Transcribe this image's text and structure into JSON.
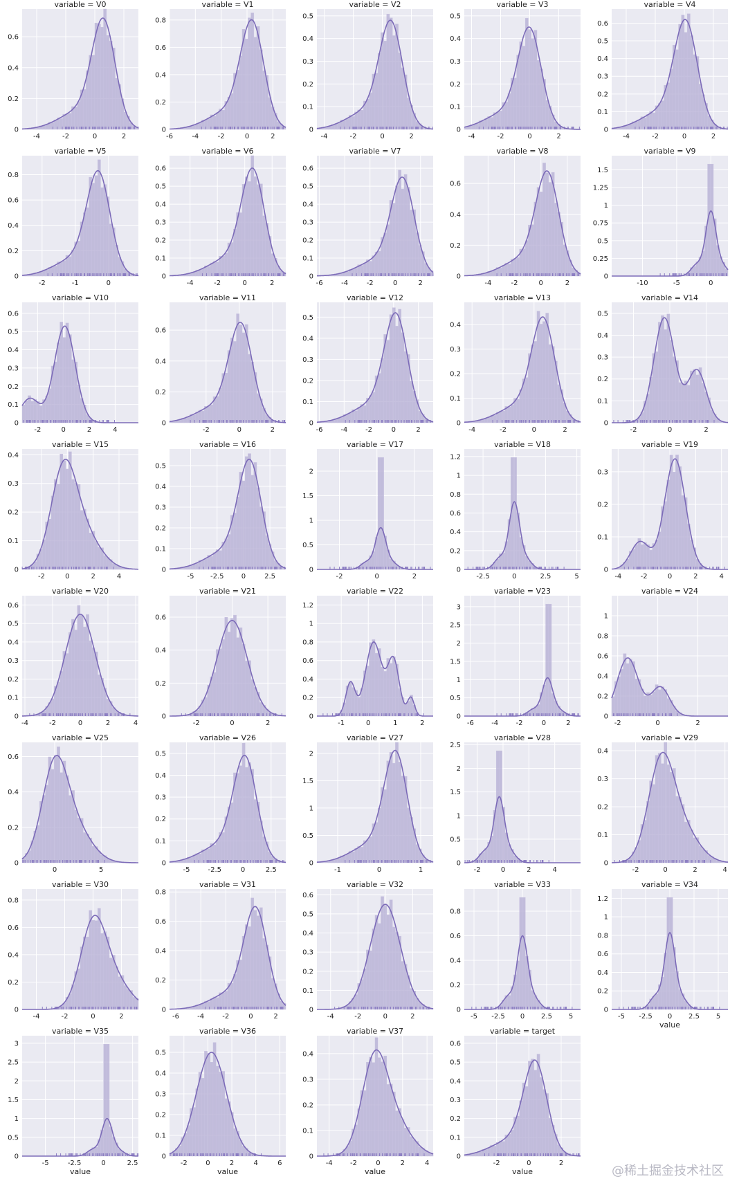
{
  "facet_prefix": "variable = ",
  "x_axis_label": "value",
  "watermark": "@稀土掘金技术社区",
  "chart_data": [
    {
      "panel": "V0",
      "type": "histogram+kde",
      "title": "variable = V0",
      "xlim": [
        -5,
        3
      ],
      "ylim": [
        0,
        0.78
      ],
      "xticks": [
        -4,
        -2,
        0,
        2
      ],
      "yticks": [
        0,
        0.2,
        0.4,
        0.6
      ],
      "mode": [
        0.6,
        0.72
      ],
      "skew": "left"
    },
    {
      "panel": "V1",
      "type": "histogram+kde",
      "title": "variable = V1",
      "xlim": [
        -6,
        3
      ],
      "ylim": [
        0,
        0.88
      ],
      "xticks": [
        -6,
        -4,
        -2,
        0,
        2
      ],
      "yticks": [
        0,
        0.2,
        0.4,
        0.6,
        0.8
      ],
      "mode": [
        0.4,
        0.8
      ],
      "skew": "left"
    },
    {
      "panel": "V2",
      "type": "histogram+kde",
      "title": "variable = V2",
      "xlim": [
        -4.5,
        3.5
      ],
      "ylim": [
        0,
        0.53
      ],
      "xticks": [
        -4,
        -2,
        0,
        2
      ],
      "yticks": [
        0,
        0.1,
        0.2,
        0.3,
        0.4,
        0.5
      ],
      "mode": [
        0.6,
        0.48
      ],
      "skew": "left"
    },
    {
      "panel": "V3",
      "type": "histogram+kde",
      "title": "variable = V3",
      "xlim": [
        -4.5,
        3.5
      ],
      "ylim": [
        0,
        0.53
      ],
      "xticks": [
        -4,
        -2,
        0,
        2
      ],
      "yticks": [
        0,
        0.1,
        0.2,
        0.3,
        0.4,
        0.5
      ],
      "mode": [
        0,
        0.45
      ],
      "skew": "left"
    },
    {
      "panel": "V4",
      "type": "histogram+kde",
      "title": "variable = V4",
      "xlim": [
        -5,
        3
      ],
      "ylim": [
        0,
        0.68
      ],
      "xticks": [
        -4,
        -2,
        0,
        2
      ],
      "yticks": [
        0,
        0.1,
        0.2,
        0.3,
        0.4,
        0.5,
        0.6
      ],
      "mode": [
        0.1,
        0.62
      ],
      "skew": "left"
    },
    {
      "panel": "V5",
      "type": "histogram+kde",
      "title": "variable = V5",
      "xlim": [
        -2.6,
        0.9
      ],
      "ylim": [
        0,
        0.95
      ],
      "xticks": [
        -2,
        -1,
        0
      ],
      "yticks": [
        0,
        0.2,
        0.4,
        0.6,
        0.8
      ],
      "mode": [
        -0.3,
        0.83
      ],
      "skew": "left"
    },
    {
      "panel": "V6",
      "type": "histogram+kde",
      "title": "variable = V6",
      "xlim": [
        -5.5,
        3
      ],
      "ylim": [
        0,
        0.67
      ],
      "xticks": [
        -4,
        -2,
        0,
        2
      ],
      "yticks": [
        0,
        0.1,
        0.2,
        0.3,
        0.4,
        0.5,
        0.6
      ],
      "mode": [
        0.6,
        0.6
      ],
      "skew": "left"
    },
    {
      "panel": "V7",
      "type": "histogram+kde",
      "title": "variable = V7",
      "xlim": [
        -6.2,
        3
      ],
      "ylim": [
        0,
        0.67
      ],
      "xticks": [
        -6,
        -4,
        -2,
        0,
        2
      ],
      "yticks": [
        0,
        0.1,
        0.2,
        0.3,
        0.4,
        0.5,
        0.6
      ],
      "mode": [
        0.6,
        0.55
      ],
      "skew": "left"
    },
    {
      "panel": "V8",
      "type": "histogram+kde",
      "title": "variable = V8",
      "xlim": [
        -5.8,
        3
      ],
      "ylim": [
        0,
        0.78
      ],
      "xticks": [
        -4,
        -2,
        0,
        2
      ],
      "yticks": [
        0,
        0.2,
        0.4,
        0.6
      ],
      "mode": [
        0.5,
        0.68
      ],
      "skew": "left"
    },
    {
      "panel": "V9",
      "type": "histogram+kde",
      "title": "variable = V9",
      "xlim": [
        -14.5,
        2.5
      ],
      "ylim": [
        0,
        1.7
      ],
      "xticks": [
        -10,
        -5,
        0
      ],
      "yticks": [
        0,
        0.25,
        0.5,
        0.75,
        1,
        1.25,
        1.5
      ],
      "mode": [
        0,
        0.92
      ],
      "skew": "spiky"
    },
    {
      "panel": "V10",
      "type": "histogram+kde",
      "title": "variable = V10",
      "xlim": [
        -3.2,
        5.8
      ],
      "ylim": [
        0,
        0.66
      ],
      "xticks": [
        -2,
        0,
        2,
        4
      ],
      "yticks": [
        0,
        0.1,
        0.2,
        0.3,
        0.4,
        0.5,
        0.6
      ],
      "mode": [
        0.1,
        0.53
      ],
      "skew": "bimodal-left"
    },
    {
      "panel": "V11",
      "type": "histogram+kde",
      "title": "variable = V11",
      "xlim": [
        -4.2,
        2.8
      ],
      "ylim": [
        0,
        0.78
      ],
      "xticks": [
        -2,
        0,
        2
      ],
      "yticks": [
        0,
        0.2,
        0.4,
        0.6
      ],
      "mode": [
        0.1,
        0.65
      ],
      "skew": "left"
    },
    {
      "panel": "V12",
      "type": "histogram+kde",
      "title": "variable = V12",
      "xlim": [
        -6.2,
        3.2
      ],
      "ylim": [
        0,
        0.57
      ],
      "xticks": [
        -6,
        -4,
        -2,
        0,
        2
      ],
      "yticks": [
        0,
        0.1,
        0.2,
        0.3,
        0.4,
        0.5
      ],
      "mode": [
        0.2,
        0.52
      ],
      "skew": "left"
    },
    {
      "panel": "V13",
      "type": "histogram+kde",
      "title": "variable = V13",
      "xlim": [
        -4.5,
        3
      ],
      "ylim": [
        0,
        0.49
      ],
      "xticks": [
        -4,
        -2,
        0,
        2
      ],
      "yticks": [
        0,
        0.1,
        0.2,
        0.3,
        0.4
      ],
      "mode": [
        0.6,
        0.43
      ],
      "skew": "left"
    },
    {
      "panel": "V14",
      "type": "histogram+kde",
      "title": "variable = V14",
      "xlim": [
        -3.2,
        3.2
      ],
      "ylim": [
        0,
        0.55
      ],
      "xticks": [
        -2,
        0,
        2
      ],
      "yticks": [
        0,
        0.1,
        0.2,
        0.3,
        0.4,
        0.5
      ],
      "mode": [
        -0.3,
        0.48
      ],
      "skew": "bimodal-right"
    },
    {
      "panel": "V15",
      "type": "histogram+kde",
      "title": "variable = V15",
      "xlim": [
        -3.5,
        5.5
      ],
      "ylim": [
        0,
        0.42
      ],
      "xticks": [
        -2,
        0,
        2,
        4
      ],
      "yticks": [
        0,
        0.1,
        0.2,
        0.3,
        0.4
      ],
      "mode": [
        -0.3,
        0.38
      ],
      "skew": "right"
    },
    {
      "panel": "V16",
      "type": "histogram+kde",
      "title": "variable = V16",
      "xlim": [
        -7,
        4
      ],
      "ylim": [
        0,
        0.58
      ],
      "xticks": [
        -5,
        -2.5,
        0,
        2.5
      ],
      "yticks": [
        0,
        0.1,
        0.2,
        0.3,
        0.4,
        0.5
      ],
      "mode": [
        0.6,
        0.53
      ],
      "skew": "left"
    },
    {
      "panel": "V17",
      "type": "histogram+kde",
      "title": "variable = V17",
      "xlim": [
        -3.2,
        3
      ],
      "ylim": [
        0,
        2.45
      ],
      "xticks": [
        -2,
        0,
        2
      ],
      "yticks": [
        0,
        0.5,
        1,
        1.5,
        2
      ],
      "mode": [
        0.2,
        0.85
      ],
      "skew": "spiky"
    },
    {
      "panel": "V18",
      "type": "histogram+kde",
      "title": "variable = V18",
      "xlim": [
        -4,
        5.3
      ],
      "ylim": [
        0,
        1.28
      ],
      "xticks": [
        -2.5,
        0,
        2.5,
        5
      ],
      "yticks": [
        0,
        0.2,
        0.4,
        0.6,
        0.8,
        1,
        1.2
      ],
      "mode": [
        0,
        0.72
      ],
      "skew": "spiky"
    },
    {
      "panel": "V19",
      "type": "histogram+kde",
      "title": "variable = V19",
      "xlim": [
        -4.5,
        4.5
      ],
      "ylim": [
        0,
        0.37
      ],
      "xticks": [
        -4,
        -2,
        0,
        2,
        4
      ],
      "yticks": [
        0,
        0.1,
        0.2,
        0.3
      ],
      "mode": [
        0.4,
        0.34
      ],
      "skew": "bimodal-left"
    },
    {
      "panel": "V20",
      "type": "histogram+kde",
      "title": "variable = V20",
      "xlim": [
        -4.2,
        4.2
      ],
      "ylim": [
        0,
        0.65
      ],
      "xticks": [
        -4,
        -2,
        0,
        2,
        4
      ],
      "yticks": [
        0,
        0.1,
        0.2,
        0.3,
        0.4,
        0.5,
        0.6
      ],
      "mode": [
        0,
        0.55
      ],
      "skew": "symmetric"
    },
    {
      "panel": "V21",
      "type": "histogram+kde",
      "title": "variable = V21",
      "xlim": [
        -3.5,
        3
      ],
      "ylim": [
        0,
        0.73
      ],
      "xticks": [
        -2,
        0,
        2
      ],
      "yticks": [
        0,
        0.2,
        0.4,
        0.6
      ],
      "mode": [
        0,
        0.58
      ],
      "skew": "symmetric"
    },
    {
      "panel": "V22",
      "type": "histogram+kde",
      "title": "variable = V22",
      "xlim": [
        -1.9,
        2.4
      ],
      "ylim": [
        0,
        1.3
      ],
      "xticks": [
        -1,
        0,
        1,
        2
      ],
      "yticks": [
        0,
        0.2,
        0.4,
        0.6,
        0.8,
        1,
        1.2
      ],
      "mode": [
        0.2,
        0.8
      ],
      "skew": "multimodal"
    },
    {
      "panel": "V23",
      "type": "histogram+kde",
      "title": "variable = V23",
      "xlim": [
        -6.5,
        3
      ],
      "ylim": [
        0,
        3.3
      ],
      "xticks": [
        -6,
        -4,
        -2,
        0,
        2
      ],
      "yticks": [
        0,
        0.5,
        1,
        1.5,
        2,
        2.5,
        3
      ],
      "mode": [
        0.3,
        1.05
      ],
      "skew": "spiky"
    },
    {
      "panel": "V24",
      "type": "histogram+kde",
      "title": "variable = V24",
      "xlim": [
        -2.3,
        3.5
      ],
      "ylim": [
        0,
        1.2
      ],
      "xticks": [
        -2,
        0,
        2
      ],
      "yticks": [
        0,
        0.2,
        0.4,
        0.6,
        0.8,
        1
      ],
      "mode": [
        -1.5,
        0.58
      ],
      "skew": "bimodal-right"
    },
    {
      "panel": "V25",
      "type": "histogram+kde",
      "title": "variable = V25",
      "xlim": [
        -3.5,
        9
      ],
      "ylim": [
        0,
        0.68
      ],
      "xticks": [
        0,
        5
      ],
      "yticks": [
        0,
        0.2,
        0.4,
        0.6
      ],
      "mode": [
        0,
        0.6
      ],
      "skew": "right"
    },
    {
      "panel": "V26",
      "type": "histogram+kde",
      "title": "variable = V26",
      "xlim": [
        -6.5,
        3.8
      ],
      "ylim": [
        0,
        0.55
      ],
      "xticks": [
        -5,
        -2.5,
        0,
        2.5
      ],
      "yticks": [
        0,
        0.1,
        0.2,
        0.3,
        0.4,
        0.5
      ],
      "mode": [
        0.2,
        0.49
      ],
      "skew": "left"
    },
    {
      "panel": "V27",
      "type": "histogram+kde",
      "title": "variable = V27",
      "xlim": [
        -1.5,
        1.3
      ],
      "ylim": [
        0,
        2.2
      ],
      "xticks": [
        -1,
        0,
        1
      ],
      "yticks": [
        0,
        0.5,
        1,
        1.5,
        2
      ],
      "mode": [
        0.4,
        2.05
      ],
      "skew": "left"
    },
    {
      "panel": "V28",
      "type": "histogram+kde",
      "title": "variable = V28",
      "xlim": [
        -3,
        6
      ],
      "ylim": [
        0,
        2.55
      ],
      "xticks": [
        -2,
        0,
        2,
        4
      ],
      "yticks": [
        0,
        0.5,
        1,
        1.5,
        2,
        2.5
      ],
      "mode": [
        -0.3,
        1.4
      ],
      "skew": "spiky"
    },
    {
      "panel": "V29",
      "type": "histogram+kde",
      "title": "variable = V29",
      "xlim": [
        -3.6,
        4.2
      ],
      "ylim": [
        0,
        0.43
      ],
      "xticks": [
        -2,
        0,
        2,
        4
      ],
      "yticks": [
        0,
        0.1,
        0.2,
        0.3,
        0.4
      ],
      "mode": [
        -0.3,
        0.39
      ],
      "skew": "right"
    },
    {
      "panel": "V30",
      "type": "histogram+kde",
      "title": "variable = V30",
      "xlim": [
        -5,
        3.2
      ],
      "ylim": [
        0,
        0.88
      ],
      "xticks": [
        -4,
        -2,
        0,
        2
      ],
      "yticks": [
        0,
        0.2,
        0.4,
        0.6,
        0.8
      ],
      "mode": [
        0,
        0.68
      ],
      "skew": "right"
    },
    {
      "panel": "V31",
      "type": "histogram+kde",
      "title": "variable = V31",
      "xlim": [
        -6.5,
        2.8
      ],
      "ylim": [
        0,
        0.82
      ],
      "xticks": [
        -6,
        -4,
        -2,
        0,
        2
      ],
      "yticks": [
        0,
        0.2,
        0.4,
        0.6,
        0.8
      ],
      "mode": [
        0.4,
        0.7
      ],
      "skew": "left"
    },
    {
      "panel": "V32",
      "type": "histogram+kde",
      "title": "variable = V32",
      "xlim": [
        -5,
        3.5
      ],
      "ylim": [
        0,
        0.63
      ],
      "xticks": [
        -4,
        -2,
        0,
        2
      ],
      "yticks": [
        0,
        0.1,
        0.2,
        0.3,
        0.4,
        0.5,
        0.6
      ],
      "mode": [
        0,
        0.55
      ],
      "skew": "symmetric"
    },
    {
      "panel": "V33",
      "type": "histogram+kde",
      "title": "variable = V33",
      "xlim": [
        -6,
        6
      ],
      "ylim": [
        0,
        0.98
      ],
      "xticks": [
        -5,
        -2.5,
        0,
        2.5,
        5
      ],
      "yticks": [
        0,
        0.2,
        0.4,
        0.6,
        0.8
      ],
      "mode": [
        0,
        0.6
      ],
      "skew": "spiky"
    },
    {
      "panel": "V34",
      "type": "histogram+kde",
      "title": "variable = V34",
      "xlim": [
        -6,
        6
      ],
      "ylim": [
        0,
        1.3
      ],
      "xticks": [
        -5,
        -2.5,
        0,
        2.5,
        5
      ],
      "yticks": [
        0,
        0.2,
        0.4,
        0.6,
        0.8,
        1,
        1.2
      ],
      "mode": [
        0,
        0.83
      ],
      "skew": "spiky"
    },
    {
      "panel": "V35",
      "type": "histogram+kde",
      "title": "variable = V35",
      "xlim": [
        -7,
        3
      ],
      "ylim": [
        0,
        3.2
      ],
      "xticks": [
        -5,
        -2.5,
        0,
        2.5
      ],
      "yticks": [
        0,
        0.5,
        1,
        1.5,
        2,
        2.5,
        3
      ],
      "mode": [
        0.3,
        1
      ],
      "skew": "spiky"
    },
    {
      "panel": "V36",
      "type": "histogram+kde",
      "title": "variable = V36",
      "xlim": [
        -3.2,
        6.5
      ],
      "ylim": [
        0,
        0.58
      ],
      "xticks": [
        -2,
        0,
        2,
        4,
        6
      ],
      "yticks": [
        0,
        0.1,
        0.2,
        0.3,
        0.4,
        0.5
      ],
      "mode": [
        0.3,
        0.5
      ],
      "skew": "symmetric"
    },
    {
      "panel": "V37",
      "type": "histogram+kde",
      "title": "variable = V37",
      "xlim": [
        -5,
        4.5
      ],
      "ylim": [
        0,
        0.47
      ],
      "xticks": [
        -4,
        -2,
        0,
        2,
        4
      ],
      "yticks": [
        0,
        0.1,
        0.2,
        0.3,
        0.4
      ],
      "mode": [
        -0.3,
        0.41
      ],
      "skew": "right"
    },
    {
      "panel": "target",
      "type": "histogram+kde",
      "title": "variable = target",
      "xlim": [
        -4,
        3.2
      ],
      "ylim": [
        0,
        0.64
      ],
      "xticks": [
        -2,
        0,
        2
      ],
      "yticks": [
        0,
        0.1,
        0.2,
        0.3,
        0.4,
        0.5,
        0.6
      ],
      "mode": [
        0.4,
        0.51
      ],
      "skew": "left"
    }
  ],
  "colors": {
    "background": "#eaeaf2",
    "grid": "#ffffff",
    "bar_fill": "#b3acd3",
    "bar_stroke": "#c8c2e0",
    "kde": "#7c6bb8",
    "rug": "#8b7dc2",
    "text": "#222222"
  }
}
